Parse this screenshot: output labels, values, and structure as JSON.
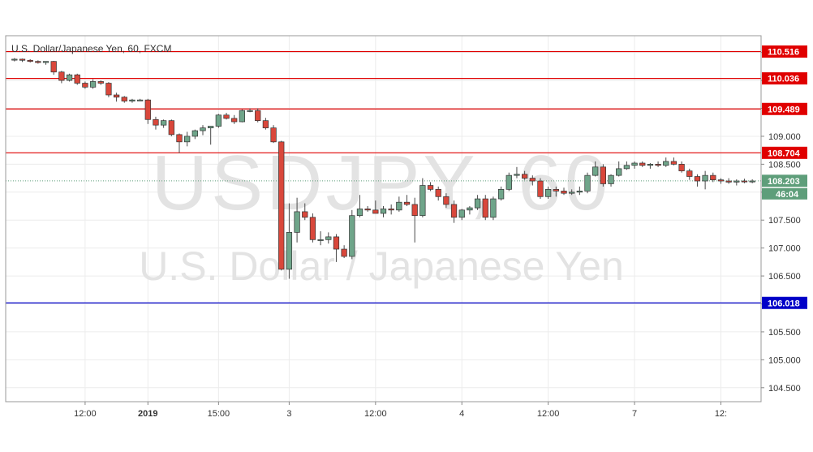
{
  "chart_data": {
    "type": "candlestick",
    "title": "U.S. Dollar/Japanese Yen, 60, FXCM",
    "watermark_symbol": "USDJPY, 60",
    "watermark_name": "U.S. Dollar / Japanese Yen",
    "ylim": [
      104.25,
      110.8
    ],
    "y_ticks": [
      104.5,
      105.0,
      105.5,
      106.0,
      106.5,
      107.0,
      107.5,
      108.0,
      108.5,
      109.0,
      109.5,
      110.0,
      110.5
    ],
    "y_tick_labels": [
      "104.500",
      "105.000",
      "105.500",
      "106.000",
      "106.500",
      "107.000",
      "107.500",
      "108.000",
      "108.500",
      "109.000",
      "109.500",
      "110.000",
      "110.500"
    ],
    "x_ticks": [
      {
        "bar": 9,
        "label": "12:00",
        "bold": false
      },
      {
        "bar": 17,
        "label": "2019",
        "bold": true
      },
      {
        "bar": 26,
        "label": "15:00",
        "bold": false
      },
      {
        "bar": 35,
        "label": "3",
        "bold": false
      },
      {
        "bar": 46,
        "label": "12:00",
        "bold": false
      },
      {
        "bar": 57,
        "label": "4",
        "bold": false
      },
      {
        "bar": 68,
        "label": "12:00",
        "bold": false
      },
      {
        "bar": 79,
        "label": "7",
        "bold": false
      },
      {
        "bar": 90,
        "label": "12:",
        "bold": false
      }
    ],
    "levels": [
      {
        "value": 110.516,
        "label": "110.516",
        "color": "#e00000"
      },
      {
        "value": 110.036,
        "label": "110.036",
        "color": "#e00000"
      },
      {
        "value": 109.489,
        "label": "109.489",
        "color": "#e00000"
      },
      {
        "value": 108.704,
        "label": "108.704",
        "color": "#e00000"
      },
      {
        "value": 106.018,
        "label": "106.018",
        "color": "#0000c8"
      }
    ],
    "current_price": {
      "value": 108.203,
      "label": "108.203",
      "countdown": "46:04",
      "color": "#5e9e7a"
    },
    "up_color": "#6fa58a",
    "down_color": "#d9473b",
    "candles": [
      [
        110.38,
        110.4,
        110.34,
        110.38
      ],
      [
        110.38,
        110.39,
        110.33,
        110.36
      ],
      [
        110.36,
        110.38,
        110.32,
        110.34
      ],
      [
        110.34,
        110.36,
        110.3,
        110.32
      ],
      [
        110.32,
        110.34,
        110.28,
        110.34
      ],
      [
        110.34,
        110.35,
        110.1,
        110.15
      ],
      [
        110.15,
        110.17,
        109.95,
        110.0
      ],
      [
        110.0,
        110.12,
        109.98,
        110.1
      ],
      [
        110.1,
        110.12,
        109.92,
        109.95
      ],
      [
        109.95,
        109.98,
        109.85,
        109.88
      ],
      [
        109.88,
        110.02,
        109.85,
        109.98
      ],
      [
        109.98,
        110.0,
        109.92,
        109.95
      ],
      [
        109.95,
        109.97,
        109.7,
        109.74
      ],
      [
        109.74,
        109.78,
        109.62,
        109.7
      ],
      [
        109.7,
        109.72,
        109.6,
        109.63
      ],
      [
        109.63,
        109.67,
        109.6,
        109.65
      ],
      [
        109.65,
        109.67,
        109.63,
        109.65
      ],
      [
        109.65,
        109.67,
        109.22,
        109.3
      ],
      [
        109.3,
        109.35,
        109.12,
        109.2
      ],
      [
        109.2,
        109.3,
        109.15,
        109.28
      ],
      [
        109.28,
        109.3,
        109.0,
        109.03
      ],
      [
        109.03,
        109.05,
        108.7,
        108.9
      ],
      [
        108.9,
        109.08,
        108.82,
        109.0
      ],
      [
        109.0,
        109.12,
        108.95,
        109.1
      ],
      [
        109.1,
        109.2,
        109.02,
        109.15
      ],
      [
        109.15,
        109.18,
        108.85,
        109.18
      ],
      [
        109.18,
        109.4,
        109.15,
        109.38
      ],
      [
        109.38,
        109.42,
        109.3,
        109.32
      ],
      [
        109.32,
        109.38,
        109.22,
        109.26
      ],
      [
        109.26,
        109.48,
        109.25,
        109.46
      ],
      [
        109.46,
        109.5,
        109.43,
        109.46
      ],
      [
        109.46,
        109.5,
        109.25,
        109.28
      ],
      [
        109.28,
        109.33,
        109.12,
        109.15
      ],
      [
        109.15,
        109.2,
        108.88,
        108.9
      ],
      [
        108.9,
        108.92,
        106.6,
        106.62
      ],
      [
        106.62,
        107.8,
        106.45,
        107.28
      ],
      [
        107.28,
        107.9,
        107.1,
        107.65
      ],
      [
        107.65,
        107.8,
        107.5,
        107.55
      ],
      [
        107.55,
        107.62,
        107.1,
        107.15
      ],
      [
        107.15,
        107.3,
        107.05,
        107.15
      ],
      [
        107.15,
        107.28,
        107.08,
        107.2
      ],
      [
        107.2,
        107.25,
        106.75,
        106.98
      ],
      [
        106.98,
        107.05,
        106.82,
        106.85
      ],
      [
        106.85,
        107.68,
        106.8,
        107.58
      ],
      [
        107.58,
        107.95,
        107.55,
        107.7
      ],
      [
        107.7,
        107.75,
        107.65,
        107.68
      ],
      [
        107.68,
        107.85,
        107.65,
        107.62
      ],
      [
        107.62,
        107.75,
        107.55,
        107.7
      ],
      [
        107.7,
        107.78,
        107.6,
        107.68
      ],
      [
        107.68,
        107.92,
        107.65,
        107.82
      ],
      [
        107.82,
        107.95,
        107.75,
        107.78
      ],
      [
        107.78,
        107.9,
        107.1,
        107.58
      ],
      [
        107.58,
        108.25,
        107.55,
        108.12
      ],
      [
        108.12,
        108.18,
        108.02,
        108.05
      ],
      [
        108.05,
        108.1,
        107.85,
        107.92
      ],
      [
        107.92,
        107.98,
        107.72,
        107.78
      ],
      [
        107.78,
        107.85,
        107.45,
        107.55
      ],
      [
        107.55,
        107.7,
        107.5,
        107.68
      ],
      [
        107.68,
        107.75,
        107.6,
        107.72
      ],
      [
        107.72,
        107.95,
        107.68,
        107.88
      ],
      [
        107.88,
        107.95,
        107.5,
        107.55
      ],
      [
        107.55,
        107.92,
        107.5,
        107.88
      ],
      [
        107.88,
        108.1,
        107.85,
        108.05
      ],
      [
        108.05,
        108.35,
        108.02,
        108.3
      ],
      [
        108.3,
        108.45,
        108.25,
        108.32
      ],
      [
        108.32,
        108.38,
        108.22,
        108.25
      ],
      [
        108.25,
        108.3,
        108.12,
        108.2
      ],
      [
        108.2,
        108.25,
        107.88,
        107.92
      ],
      [
        107.92,
        108.1,
        107.88,
        108.05
      ],
      [
        108.05,
        108.1,
        107.92,
        108.02
      ],
      [
        108.02,
        108.08,
        107.95,
        107.98
      ],
      [
        107.98,
        108.05,
        107.95,
        108.0
      ],
      [
        108.0,
        108.1,
        107.95,
        108.02
      ],
      [
        108.02,
        108.35,
        107.98,
        108.3
      ],
      [
        108.3,
        108.55,
        108.28,
        108.45
      ],
      [
        108.45,
        108.5,
        108.1,
        108.15
      ],
      [
        108.15,
        108.32,
        108.1,
        108.3
      ],
      [
        108.3,
        108.55,
        108.28,
        108.42
      ],
      [
        108.42,
        108.55,
        108.4,
        108.48
      ],
      [
        108.48,
        108.55,
        108.42,
        108.52
      ],
      [
        108.52,
        108.55,
        108.45,
        108.48
      ],
      [
        108.48,
        108.52,
        108.42,
        108.5
      ],
      [
        108.5,
        108.55,
        108.45,
        108.48
      ],
      [
        108.48,
        108.62,
        108.45,
        108.55
      ],
      [
        108.55,
        108.62,
        108.48,
        108.5
      ],
      [
        108.5,
        108.55,
        108.35,
        108.38
      ],
      [
        108.38,
        108.42,
        108.22,
        108.28
      ],
      [
        108.28,
        108.32,
        108.1,
        108.2
      ],
      [
        108.2,
        108.38,
        108.05,
        108.3
      ],
      [
        108.3,
        108.35,
        108.18,
        108.22
      ],
      [
        108.22,
        108.25,
        108.15,
        108.2
      ],
      [
        108.2,
        108.25,
        108.15,
        108.18
      ],
      [
        108.18,
        108.23,
        108.12,
        108.2
      ],
      [
        108.2,
        108.24,
        108.16,
        108.19
      ],
      [
        108.19,
        108.23,
        108.16,
        108.2
      ]
    ]
  }
}
